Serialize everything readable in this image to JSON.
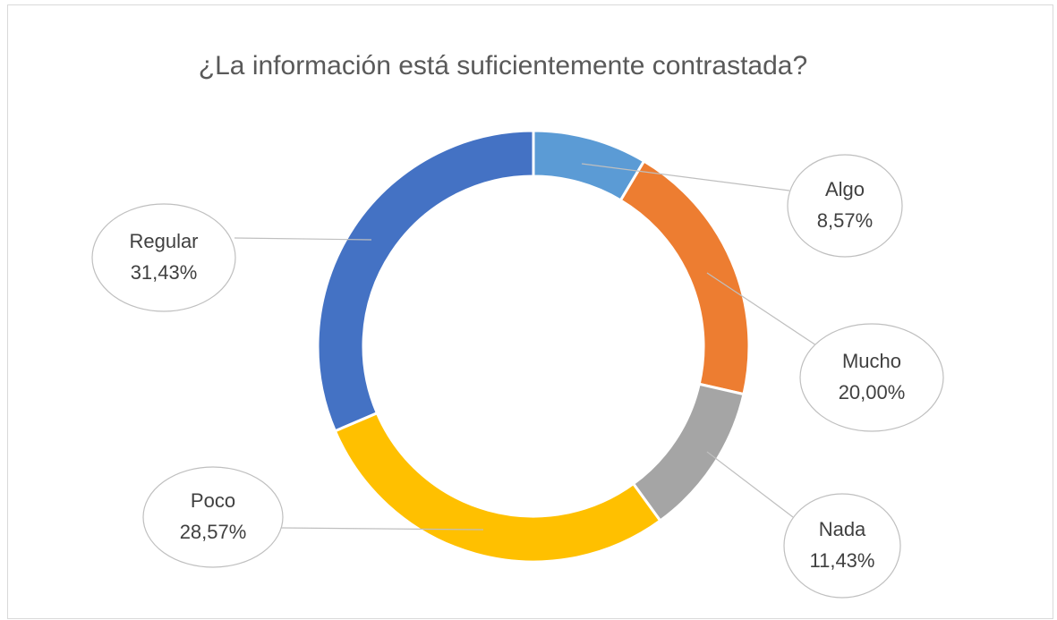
{
  "chart_data": {
    "type": "donut",
    "title": "¿La información está suficientemente contrastada?",
    "categories": [
      "Algo",
      "Mucho",
      "Nada",
      "Poco",
      "Regular"
    ],
    "values": [
      8.57,
      20.0,
      11.43,
      28.57,
      31.43
    ],
    "value_labels": [
      "8,57%",
      "20,00%",
      "11,43%",
      "28,57%",
      "31,43%"
    ],
    "colors": [
      "#5b9bd5",
      "#ed7d31",
      "#a5a5a5",
      "#ffc000",
      "#4472c4"
    ]
  }
}
